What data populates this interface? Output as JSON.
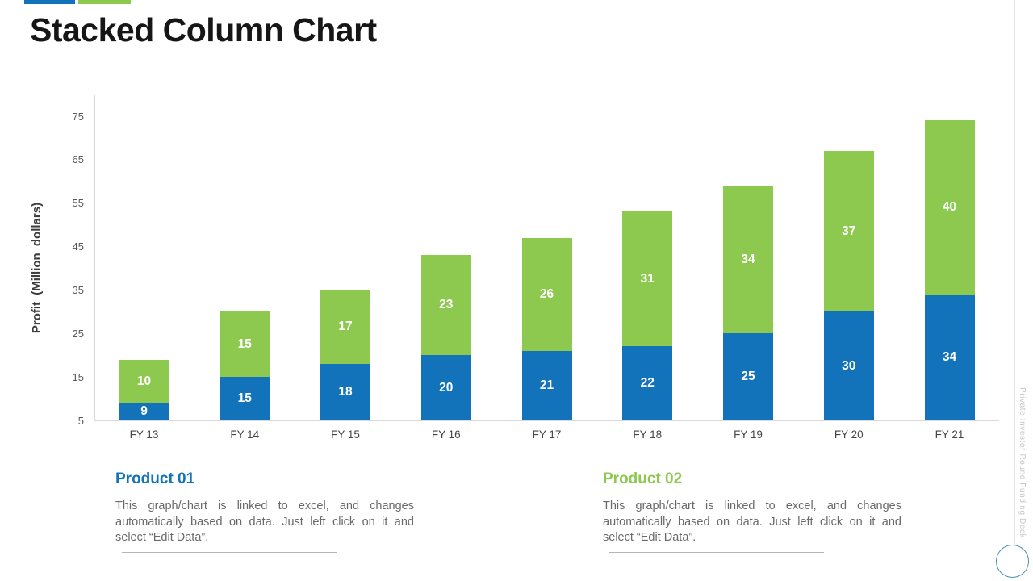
{
  "slide": {
    "title": "Stacked Column Chart",
    "side_note": "Private Investor Round Funding Deck"
  },
  "chart_data": {
    "type": "bar",
    "subtype": "stacked-column",
    "categories": [
      "FY 13",
      "FY 14",
      "FY 15",
      "FY 16",
      "FY 17",
      "FY 18",
      "FY 19",
      "FY 20",
      "FY 21"
    ],
    "series": [
      {
        "name": "Product 01",
        "color": "#1272BA",
        "values": [
          9,
          15,
          18,
          20,
          21,
          22,
          25,
          30,
          34
        ]
      },
      {
        "name": "Product 02",
        "color": "#8DC94E",
        "values": [
          10,
          15,
          17,
          23,
          26,
          31,
          34,
          37,
          40
        ]
      }
    ],
    "title": "Stacked Column Chart",
    "xlabel": "",
    "ylabel": "Profit  (Million  dollars)",
    "yticks": [
      5,
      15,
      25,
      35,
      45,
      55,
      65,
      75
    ],
    "ylim": [
      5,
      80
    ],
    "grid": false,
    "legend": "top-left color swatches",
    "data_labels": "white bold numbers inside each segment"
  },
  "sections": [
    {
      "heading": "Product 01",
      "heading_color": "#1272BA",
      "body": "This graph/chart is linked to excel, and changes automatically based on data. Just left click on it and select “Edit Data”."
    },
    {
      "heading": "Product 02",
      "heading_color": "#8DC94E",
      "body": "This graph/chart is linked to excel, and changes automatically based on data. Just left click on it and select “Edit Data”."
    }
  ]
}
